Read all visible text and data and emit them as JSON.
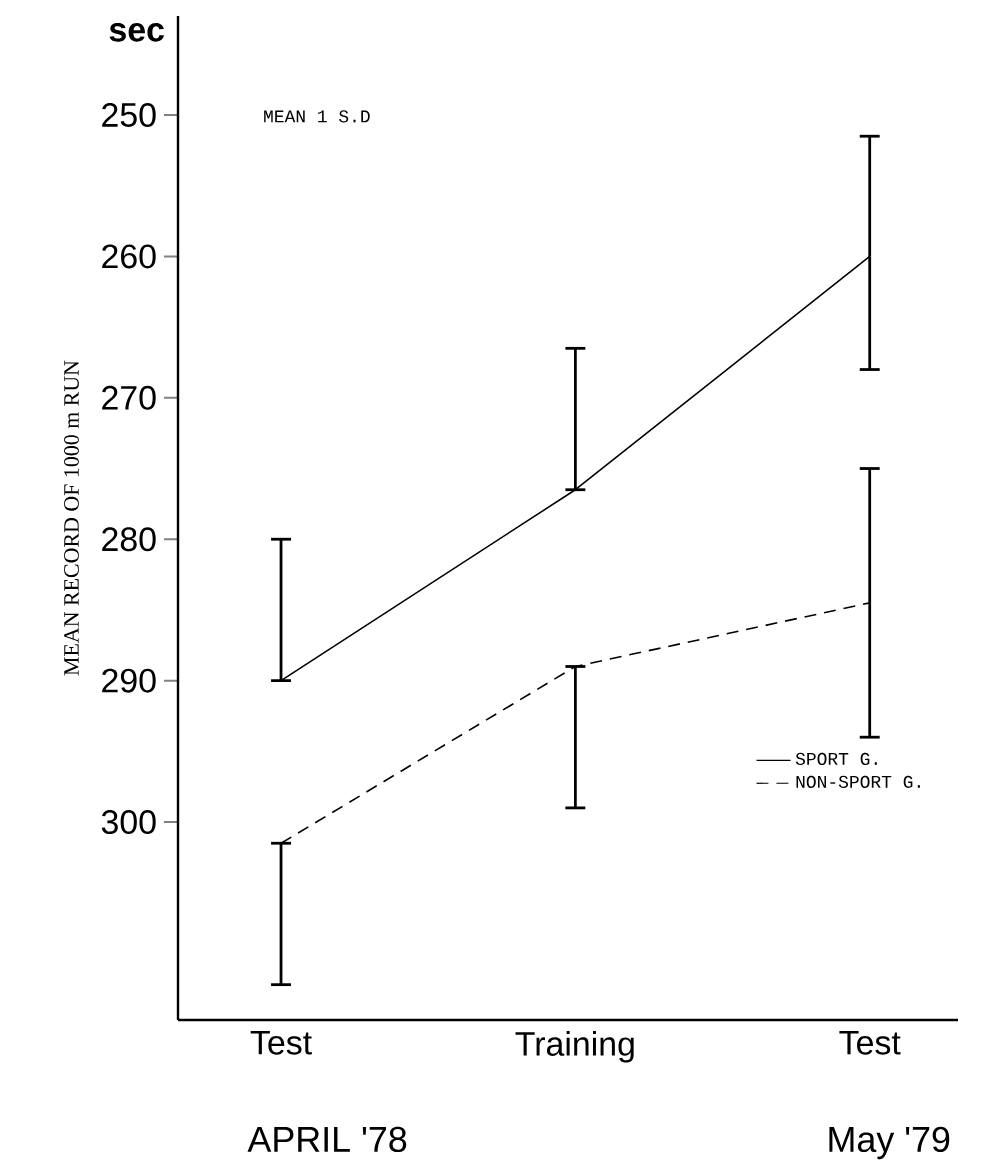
{
  "chart_data": {
    "type": "line",
    "ylabel": "MEAN RECORD OF 1000 m RUN",
    "categories": [
      "Test",
      "Training",
      "Test"
    ],
    "series": [
      {
        "name": "SPORT G.",
        "color": "#000000",
        "line_style": "solid",
        "values": [
          290,
          276.5,
          260
        ],
        "errors": [
          [
            280,
            290
          ],
          [
            266.5,
            276.5
          ],
          [
            251.5,
            268
          ]
        ]
      },
      {
        "name": "NON-SPORT G.",
        "color": "#000000",
        "line_style": "dashed",
        "values": [
          301.5,
          289,
          284.5
        ],
        "errors": [
          [
            301.5,
            311.5
          ],
          [
            289,
            299
          ],
          9.5
        ]
      }
    ],
    "ylim": [
      314,
      243
    ],
    "yticks": [
      250,
      260,
      270,
      280,
      290,
      300
    ],
    "legend": "bottom right",
    "grid": false,
    "annotations": [
      "sec",
      "MEAN   1 S.D",
      "APRIL  '78",
      "May  '79"
    ]
  }
}
